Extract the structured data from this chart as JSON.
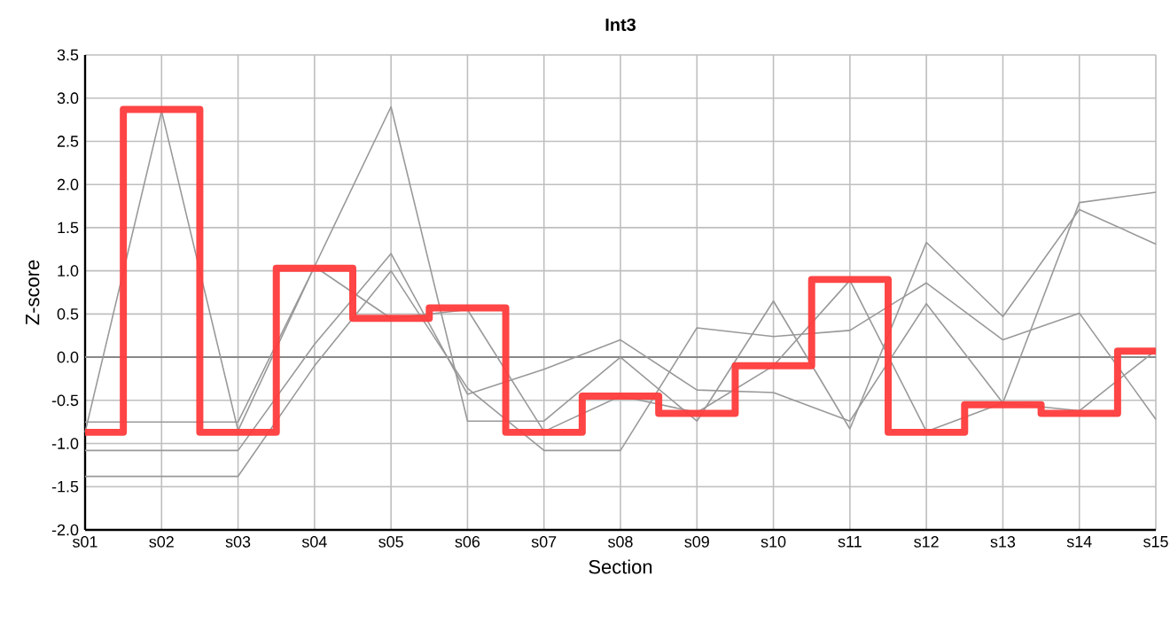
{
  "chart_data": {
    "type": "line",
    "title": "Int3",
    "xlabel": "Section",
    "ylabel": "Z-score",
    "categories": [
      "s01",
      "s02",
      "s03",
      "s04",
      "s05",
      "s06",
      "s07",
      "s08",
      "s09",
      "s10",
      "s11",
      "s12",
      "s13",
      "s14",
      "s15"
    ],
    "series": [
      {
        "color": "#999999",
        "values": [
          -0.87,
          2.85,
          -0.85,
          1.05,
          0.45,
          0.55,
          -0.86,
          -0.45,
          -0.64,
          -0.1,
          0.89,
          -0.86,
          -0.53,
          -0.62,
          0.08
        ]
      },
      {
        "color": "#999999",
        "values": [
          -0.75,
          -0.75,
          -0.75,
          1.05,
          2.9,
          -0.74,
          -0.74,
          0.0,
          -0.74,
          0.65,
          -0.83,
          1.33,
          0.47,
          1.71,
          1.31
        ]
      },
      {
        "color": "#999999",
        "values": [
          -1.08,
          -1.08,
          -1.08,
          0.15,
          1.2,
          -0.43,
          -0.14,
          0.2,
          -0.38,
          -0.41,
          -0.74,
          0.62,
          -0.53,
          1.79,
          1.91
        ]
      },
      {
        "color": "#999999",
        "values": [
          -1.38,
          -1.38,
          -1.38,
          -0.1,
          1.0,
          -0.36,
          -1.08,
          -1.08,
          0.34,
          0.24,
          0.31,
          0.86,
          0.2,
          0.51,
          -0.72
        ]
      },
      {
        "type": "step",
        "color": "#ff3b3b",
        "values": [
          -0.87,
          2.87,
          -0.87,
          1.03,
          0.45,
          0.57,
          -0.87,
          -0.45,
          -0.65,
          -0.1,
          0.9,
          -0.87,
          -0.55,
          -0.65,
          0.07
        ]
      }
    ],
    "ylim": [
      -2,
      3.5
    ],
    "yticks": [
      {
        "value": -2,
        "label": "-2.0"
      },
      {
        "value": -1.5,
        "label": "-1.5"
      },
      {
        "value": -1,
        "label": "-1.0"
      },
      {
        "value": -0.5,
        "label": "-0.5"
      },
      {
        "value": 0,
        "label": "0.0"
      },
      {
        "value": 0.5,
        "label": "0.5"
      },
      {
        "value": 1,
        "label": "1.0"
      },
      {
        "value": 1.5,
        "label": "1.5"
      },
      {
        "value": 2,
        "label": "2.0"
      },
      {
        "value": 2.5,
        "label": "2.5"
      },
      {
        "value": 3,
        "label": "3.0"
      },
      {
        "value": 3.5,
        "label": "3.5"
      }
    ],
    "grid": true,
    "ref_lines": [
      {
        "axis": "y",
        "value": 0,
        "color": "#888888"
      }
    ]
  }
}
